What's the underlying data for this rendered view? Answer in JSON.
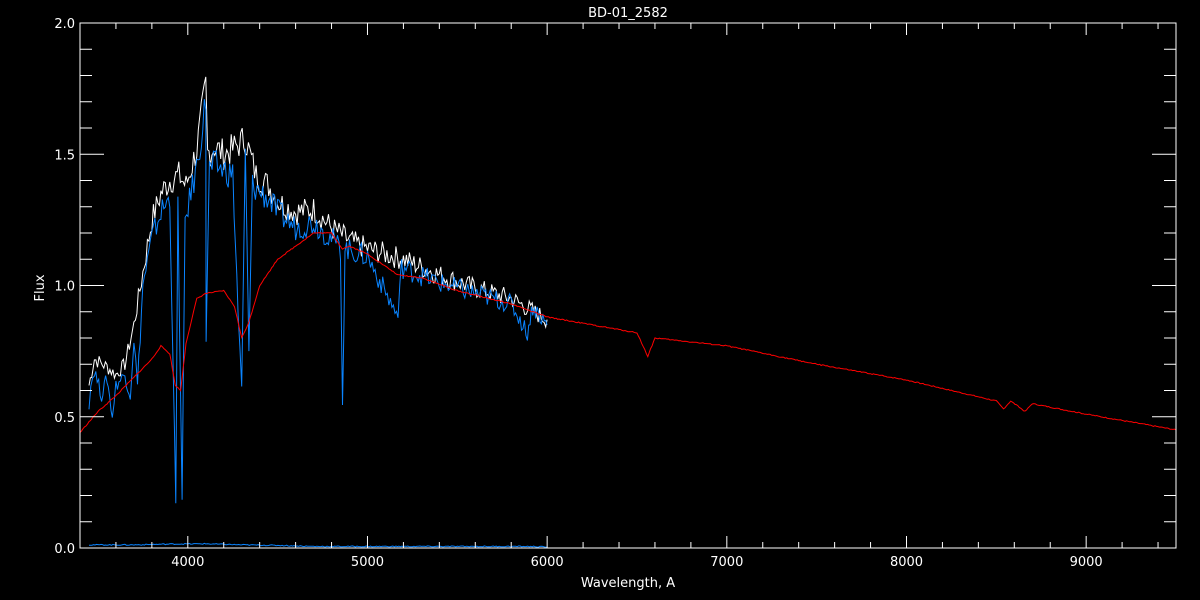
{
  "chart_data": {
    "type": "line",
    "title": "BD-01_2582",
    "xlabel": "Wavelength, A",
    "ylabel": "Flux",
    "xlim": [
      3400,
      9500
    ],
    "ylim": [
      0.0,
      2.0
    ],
    "x_ticks": [
      "4000",
      "5000",
      "6000",
      "7000",
      "8000",
      "9000"
    ],
    "x_tick_values": [
      4000,
      5000,
      6000,
      7000,
      8000,
      9000
    ],
    "y_ticks": [
      "0.0",
      "0.5",
      "1.0",
      "1.5",
      "2.0"
    ],
    "y_tick_values": [
      0.0,
      0.5,
      1.0,
      1.5,
      2.0
    ],
    "grid": false,
    "background": "#000000",
    "series": [
      {
        "color": "#ffffff",
        "points": [
          [
            3450,
            0.62
          ],
          [
            3480,
            0.72
          ],
          [
            3550,
            0.69
          ],
          [
            3600,
            0.66
          ],
          [
            3650,
            0.7
          ],
          [
            3700,
            0.85
          ],
          [
            3750,
            1.05
          ],
          [
            3800,
            1.25
          ],
          [
            3850,
            1.35
          ],
          [
            3900,
            1.4
          ],
          [
            3950,
            1.42
          ],
          [
            3990,
            1.38
          ],
          [
            4050,
            1.52
          ],
          [
            4100,
            1.76
          ],
          [
            4110,
            1.5
          ],
          [
            4150,
            1.53
          ],
          [
            4200,
            1.5
          ],
          [
            4250,
            1.52
          ],
          [
            4320,
            1.56
          ],
          [
            4380,
            1.42
          ],
          [
            4450,
            1.38
          ],
          [
            4500,
            1.32
          ],
          [
            4600,
            1.28
          ],
          [
            4700,
            1.29
          ],
          [
            4800,
            1.22
          ],
          [
            4900,
            1.17
          ],
          [
            5000,
            1.14
          ],
          [
            5200,
            1.1
          ],
          [
            5400,
            1.04
          ],
          [
            5600,
            0.99
          ],
          [
            5800,
            0.95
          ],
          [
            6000,
            0.87
          ]
        ]
      },
      {
        "color": "#0a84ff",
        "points": [
          [
            3450,
            0.55
          ],
          [
            3460,
            0.62
          ],
          [
            3480,
            0.68
          ],
          [
            3520,
            0.58
          ],
          [
            3550,
            0.65
          ],
          [
            3580,
            0.5
          ],
          [
            3600,
            0.62
          ],
          [
            3650,
            0.66
          ],
          [
            3680,
            0.58
          ],
          [
            3700,
            0.8
          ],
          [
            3720,
            0.62
          ],
          [
            3750,
            1.0
          ],
          [
            3800,
            1.18
          ],
          [
            3850,
            1.28
          ],
          [
            3900,
            1.33
          ],
          [
            3920,
            0.65
          ],
          [
            3933,
            0.17
          ],
          [
            3945,
            1.3
          ],
          [
            3968,
            0.18
          ],
          [
            3985,
            1.25
          ],
          [
            4050,
            1.45
          ],
          [
            4100,
            1.7
          ],
          [
            4102,
            0.8
          ],
          [
            4120,
            1.44
          ],
          [
            4150,
            1.46
          ],
          [
            4200,
            1.44
          ],
          [
            4250,
            1.42
          ],
          [
            4280,
            0.9
          ],
          [
            4300,
            0.6
          ],
          [
            4320,
            1.5
          ],
          [
            4340,
            0.75
          ],
          [
            4360,
            1.38
          ],
          [
            4450,
            1.33
          ],
          [
            4500,
            1.28
          ],
          [
            4600,
            1.22
          ],
          [
            4700,
            1.24
          ],
          [
            4800,
            1.18
          ],
          [
            4850,
            1.14
          ],
          [
            4861,
            0.55
          ],
          [
            4875,
            1.14
          ],
          [
            5000,
            1.11
          ],
          [
            5170,
            0.88
          ],
          [
            5190,
            1.07
          ],
          [
            5400,
            1.01
          ],
          [
            5600,
            0.97
          ],
          [
            5800,
            0.93
          ],
          [
            5890,
            0.82
          ],
          [
            5920,
            0.92
          ],
          [
            6000,
            0.85
          ]
        ]
      },
      {
        "color": "#ff0000",
        "points": [
          [
            3400,
            0.44
          ],
          [
            3500,
            0.52
          ],
          [
            3600,
            0.58
          ],
          [
            3700,
            0.65
          ],
          [
            3800,
            0.72
          ],
          [
            3850,
            0.77
          ],
          [
            3900,
            0.74
          ],
          [
            3930,
            0.62
          ],
          [
            3960,
            0.6
          ],
          [
            3990,
            0.78
          ],
          [
            4050,
            0.95
          ],
          [
            4100,
            0.97
          ],
          [
            4200,
            0.98
          ],
          [
            4260,
            0.92
          ],
          [
            4300,
            0.8
          ],
          [
            4340,
            0.86
          ],
          [
            4400,
            1.0
          ],
          [
            4500,
            1.1
          ],
          [
            4600,
            1.15
          ],
          [
            4700,
            1.2
          ],
          [
            4800,
            1.2
          ],
          [
            4860,
            1.14
          ],
          [
            4900,
            1.15
          ],
          [
            5000,
            1.12
          ],
          [
            5170,
            1.04
          ],
          [
            5300,
            1.03
          ],
          [
            5500,
            0.98
          ],
          [
            5800,
            0.93
          ],
          [
            6000,
            0.88
          ],
          [
            6500,
            0.82
          ],
          [
            6560,
            0.73
          ],
          [
            6600,
            0.8
          ],
          [
            7000,
            0.77
          ],
          [
            7500,
            0.7
          ],
          [
            8000,
            0.64
          ],
          [
            8500,
            0.56
          ],
          [
            8540,
            0.53
          ],
          [
            8580,
            0.56
          ],
          [
            8660,
            0.52
          ],
          [
            8700,
            0.55
          ],
          [
            9000,
            0.51
          ],
          [
            9500,
            0.45
          ]
        ]
      },
      {
        "color": "#0a84ff",
        "points": [
          [
            3450,
            0.012
          ],
          [
            3700,
            0.012
          ],
          [
            3900,
            0.015
          ],
          [
            4100,
            0.016
          ],
          [
            4300,
            0.012
          ],
          [
            4500,
            0.01
          ],
          [
            4700,
            0.006
          ],
          [
            5000,
            0.006
          ],
          [
            5500,
            0.006
          ],
          [
            5900,
            0.006
          ],
          [
            6000,
            0.004
          ]
        ]
      }
    ]
  }
}
